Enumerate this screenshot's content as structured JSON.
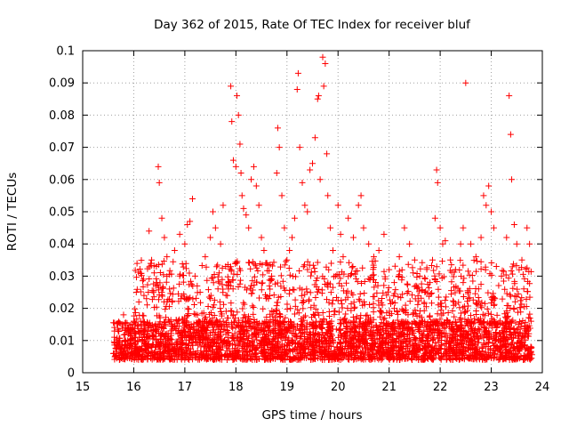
{
  "chart_data": {
    "type": "scatter",
    "title": "Day 362 of 2015, Rate Of TEC Index for receiver bluf",
    "xlabel": "GPS time / hours",
    "ylabel": "ROTI / TECUs",
    "xlim": [
      15,
      24
    ],
    "ylim": [
      0,
      0.1
    ],
    "xticks": [
      15,
      16,
      17,
      18,
      19,
      20,
      21,
      22,
      23,
      24
    ],
    "xtick_labels": [
      "15",
      "16",
      "17",
      "18",
      "19",
      "20",
      "21",
      "22",
      "23",
      "24"
    ],
    "yticks": [
      0,
      0.01,
      0.02,
      0.03,
      0.04,
      0.05,
      0.06,
      0.07,
      0.08,
      0.09,
      0.1
    ],
    "ytick_labels": [
      "0",
      "0.01",
      "0.02",
      "0.03",
      "0.04",
      "0.05",
      "0.06",
      "0.07",
      "0.08",
      "0.09",
      "0.1"
    ],
    "grid": true,
    "marker": "+",
    "color": "#ff0000",
    "x_range_of_data": [
      15.6,
      23.8
    ],
    "series": [
      {
        "name": "ROTI",
        "points": [
          [
            15.62,
            0.011
          ],
          [
            15.7,
            0.013
          ],
          [
            15.8,
            0.018
          ],
          [
            15.9,
            0.012
          ],
          [
            16.0,
            0.016
          ],
          [
            16.05,
            0.025
          ],
          [
            16.1,
            0.022
          ],
          [
            16.15,
            0.015
          ],
          [
            16.2,
            0.024
          ],
          [
            16.25,
            0.023
          ],
          [
            16.3,
            0.044
          ],
          [
            16.35,
            0.035
          ],
          [
            16.4,
            0.031
          ],
          [
            16.45,
            0.028
          ],
          [
            16.48,
            0.064
          ],
          [
            16.5,
            0.059
          ],
          [
            16.55,
            0.048
          ],
          [
            16.6,
            0.042
          ],
          [
            16.65,
            0.036
          ],
          [
            16.7,
            0.026
          ],
          [
            16.75,
            0.022
          ],
          [
            16.8,
            0.038
          ],
          [
            16.9,
            0.043
          ],
          [
            17.0,
            0.04
          ],
          [
            17.05,
            0.046
          ],
          [
            17.1,
            0.047
          ],
          [
            17.15,
            0.054
          ],
          [
            17.2,
            0.03
          ],
          [
            17.3,
            0.025
          ],
          [
            17.4,
            0.036
          ],
          [
            17.5,
            0.042
          ],
          [
            17.55,
            0.05
          ],
          [
            17.6,
            0.045
          ],
          [
            17.7,
            0.04
          ],
          [
            17.75,
            0.052
          ],
          [
            17.8,
            0.033
          ],
          [
            17.85,
            0.028
          ],
          [
            17.9,
            0.089
          ],
          [
            17.92,
            0.078
          ],
          [
            17.95,
            0.066
          ],
          [
            18.0,
            0.064
          ],
          [
            18.02,
            0.086
          ],
          [
            18.05,
            0.08
          ],
          [
            18.08,
            0.071
          ],
          [
            18.1,
            0.062
          ],
          [
            18.12,
            0.055
          ],
          [
            18.15,
            0.051
          ],
          [
            18.2,
            0.049
          ],
          [
            18.25,
            0.045
          ],
          [
            18.3,
            0.06
          ],
          [
            18.35,
            0.064
          ],
          [
            18.4,
            0.058
          ],
          [
            18.45,
            0.052
          ],
          [
            18.5,
            0.042
          ],
          [
            18.55,
            0.038
          ],
          [
            18.6,
            0.034
          ],
          [
            18.7,
            0.03
          ],
          [
            18.8,
            0.062
          ],
          [
            18.82,
            0.076
          ],
          [
            18.85,
            0.07
          ],
          [
            18.9,
            0.055
          ],
          [
            18.95,
            0.045
          ],
          [
            19.0,
            0.035
          ],
          [
            19.05,
            0.038
          ],
          [
            19.1,
            0.042
          ],
          [
            19.15,
            0.048
          ],
          [
            19.2,
            0.088
          ],
          [
            19.22,
            0.093
          ],
          [
            19.25,
            0.07
          ],
          [
            19.3,
            0.059
          ],
          [
            19.35,
            0.052
          ],
          [
            19.4,
            0.05
          ],
          [
            19.45,
            0.063
          ],
          [
            19.5,
            0.065
          ],
          [
            19.55,
            0.073
          ],
          [
            19.6,
            0.085
          ],
          [
            19.62,
            0.086
          ],
          [
            19.65,
            0.06
          ],
          [
            19.7,
            0.098
          ],
          [
            19.72,
            0.089
          ],
          [
            19.75,
            0.096
          ],
          [
            19.78,
            0.068
          ],
          [
            19.8,
            0.055
          ],
          [
            19.85,
            0.045
          ],
          [
            19.9,
            0.038
          ],
          [
            19.95,
            0.03
          ],
          [
            20.0,
            0.052
          ],
          [
            20.05,
            0.043
          ],
          [
            20.1,
            0.036
          ],
          [
            20.2,
            0.048
          ],
          [
            20.3,
            0.042
          ],
          [
            20.4,
            0.052
          ],
          [
            20.45,
            0.055
          ],
          [
            20.5,
            0.045
          ],
          [
            20.6,
            0.04
          ],
          [
            20.7,
            0.036
          ],
          [
            20.8,
            0.038
          ],
          [
            20.9,
            0.043
          ],
          [
            21.0,
            0.032
          ],
          [
            21.1,
            0.028
          ],
          [
            21.2,
            0.036
          ],
          [
            21.3,
            0.045
          ],
          [
            21.4,
            0.04
          ],
          [
            21.5,
            0.035
          ],
          [
            21.6,
            0.03
          ],
          [
            21.7,
            0.025
          ],
          [
            21.8,
            0.028
          ],
          [
            21.85,
            0.035
          ],
          [
            21.9,
            0.048
          ],
          [
            21.93,
            0.063
          ],
          [
            21.95,
            0.059
          ],
          [
            22.0,
            0.045
          ],
          [
            22.05,
            0.04
          ],
          [
            22.1,
            0.041
          ],
          [
            22.2,
            0.035
          ],
          [
            22.3,
            0.032
          ],
          [
            22.4,
            0.04
          ],
          [
            22.45,
            0.045
          ],
          [
            22.5,
            0.09
          ],
          [
            22.6,
            0.04
          ],
          [
            22.7,
            0.036
          ],
          [
            22.8,
            0.042
          ],
          [
            22.85,
            0.055
          ],
          [
            22.9,
            0.052
          ],
          [
            22.95,
            0.058
          ],
          [
            23.0,
            0.05
          ],
          [
            23.05,
            0.045
          ],
          [
            23.1,
            0.033
          ],
          [
            23.2,
            0.03
          ],
          [
            23.3,
            0.042
          ],
          [
            23.35,
            0.086
          ],
          [
            23.38,
            0.074
          ],
          [
            23.4,
            0.06
          ],
          [
            23.45,
            0.046
          ],
          [
            23.5,
            0.04
          ],
          [
            23.6,
            0.035
          ],
          [
            23.7,
            0.045
          ],
          [
            23.75,
            0.04
          ],
          [
            23.78,
            0.016
          ]
        ]
      }
    ],
    "density_bands": [
      {
        "x_start": 15.6,
        "x_end": 23.8,
        "y_low": 0.004,
        "y_high": 0.016,
        "points_per_hour": 360
      },
      {
        "x_start": 16.0,
        "x_end": 23.8,
        "y_low": 0.015,
        "y_high": 0.035,
        "points_per_hour": 110
      }
    ]
  }
}
